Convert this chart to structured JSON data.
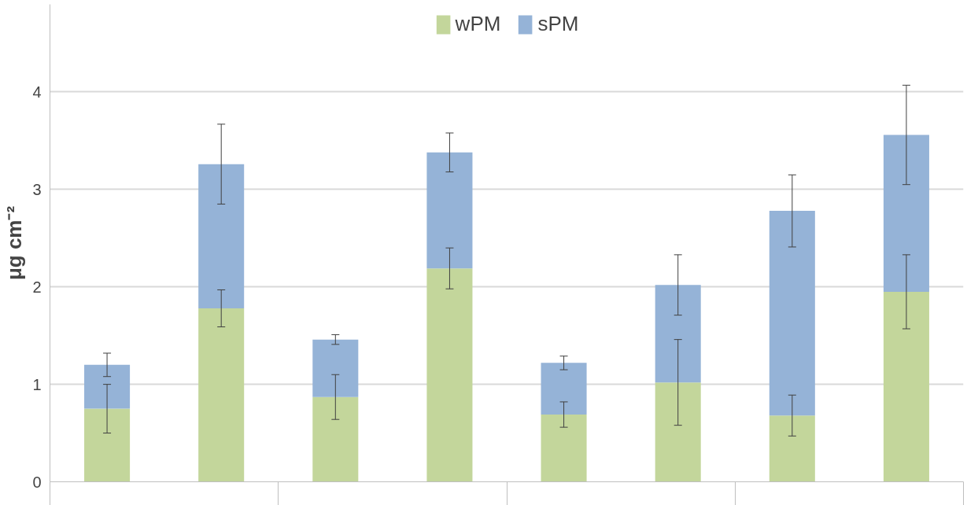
{
  "chart_data": {
    "type": "bar",
    "stacked": true,
    "ylabel": "μg cm⁻²",
    "categories": [
      null,
      null,
      null,
      null,
      null,
      null,
      null,
      null
    ],
    "series": [
      {
        "name": "wPM",
        "color": "#c3d69b",
        "values": [
          0.75,
          1.78,
          0.87,
          2.19,
          0.69,
          1.02,
          0.68,
          1.95
        ],
        "errors": [
          0.25,
          0.19,
          0.23,
          0.21,
          0.13,
          0.44,
          0.21,
          0.38
        ]
      },
      {
        "name": "sPM",
        "color": "#95b3d7",
        "values": [
          0.45,
          1.48,
          0.59,
          1.19,
          0.53,
          1.0,
          2.1,
          1.61
        ],
        "errors": [
          0.12,
          0.41,
          0.05,
          0.2,
          0.07,
          0.31,
          0.37,
          0.51
        ]
      }
    ],
    "ylim": [
      0,
      4.9
    ],
    "yticks": [
      0,
      1,
      2,
      3,
      4
    ],
    "grid": "y",
    "legend": "top"
  }
}
